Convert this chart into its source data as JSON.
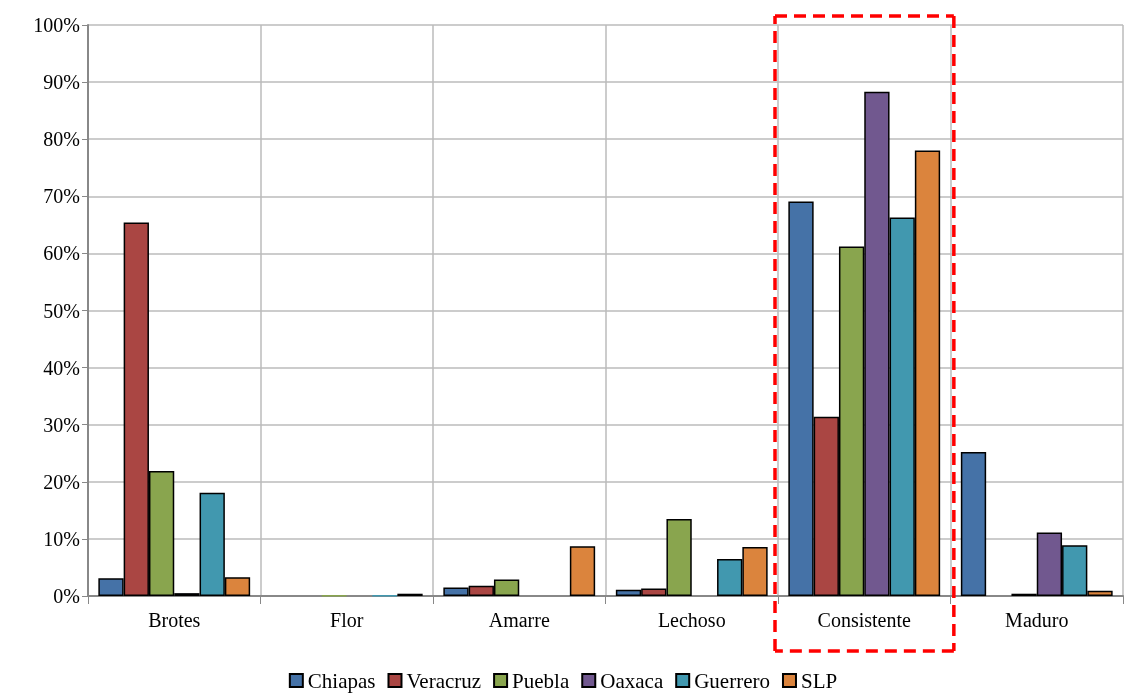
{
  "chart_data": {
    "type": "bar",
    "categories": [
      "Brotes",
      "Flor",
      "Amarre",
      "Lechoso",
      "Consistente",
      "Maduro"
    ],
    "series": [
      {
        "name": "Chiapas",
        "color": "#4572a7",
        "values": [
          3.1,
          0,
          1.5,
          1.1,
          69.1,
          25.2
        ]
      },
      {
        "name": "Veracruz",
        "color": "#aa4643",
        "values": [
          65.4,
          0,
          1.8,
          1.3,
          31.4,
          0
        ]
      },
      {
        "name": "Puebla",
        "color": "#89a54e",
        "values": [
          21.9,
          0.1,
          2.9,
          13.5,
          61.2,
          0.4
        ]
      },
      {
        "name": "Oaxaca",
        "color": "#71588f",
        "values": [
          0.5,
          0,
          0,
          0,
          88.3,
          11.1
        ]
      },
      {
        "name": "Guerrero",
        "color": "#4198af",
        "values": [
          18.1,
          0.1,
          0,
          6.5,
          66.3,
          8.9
        ]
      },
      {
        "name": "SLP",
        "color": "#db843d",
        "values": [
          3.3,
          0.4,
          8.7,
          8.6,
          78.0,
          0.9
        ]
      }
    ],
    "ylim": [
      0,
      100
    ],
    "yticks": [
      {
        "value": 0,
        "label": "0%"
      },
      {
        "value": 10,
        "label": "10%"
      },
      {
        "value": 20,
        "label": "20%"
      },
      {
        "value": 30,
        "label": "30%"
      },
      {
        "value": 40,
        "label": "40%"
      },
      {
        "value": 50,
        "label": "50%"
      },
      {
        "value": 60,
        "label": "60%"
      },
      {
        "value": 70,
        "label": "70%"
      },
      {
        "value": 80,
        "label": "80%"
      },
      {
        "value": 90,
        "label": "90%"
      },
      {
        "value": 100,
        "label": "100%"
      }
    ],
    "grid": true,
    "legend": "bottom"
  }
}
